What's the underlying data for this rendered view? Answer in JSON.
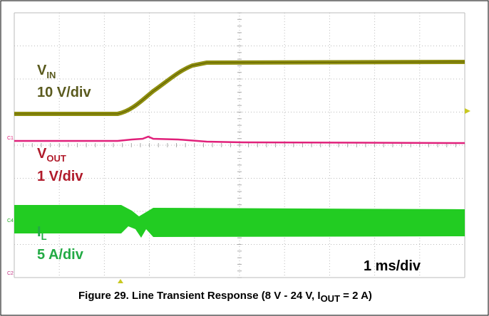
{
  "labels": [
    {
      "name": "V",
      "sub": "IN",
      "scale": "10 V/div"
    },
    {
      "name": "V",
      "sub": "OUT",
      "scale": "1 V/div"
    },
    {
      "name": "I",
      "sub": "L",
      "scale": "5 A/div"
    }
  ],
  "timebase": "1 ms/div",
  "channel_markers": [
    "C1",
    "C4",
    "C2"
  ],
  "caption": {
    "text": "Figure 29. Line Transient Response (8 V - 24 V, I",
    "sub": "OUT",
    "end": " = 2 A)"
  }
}
